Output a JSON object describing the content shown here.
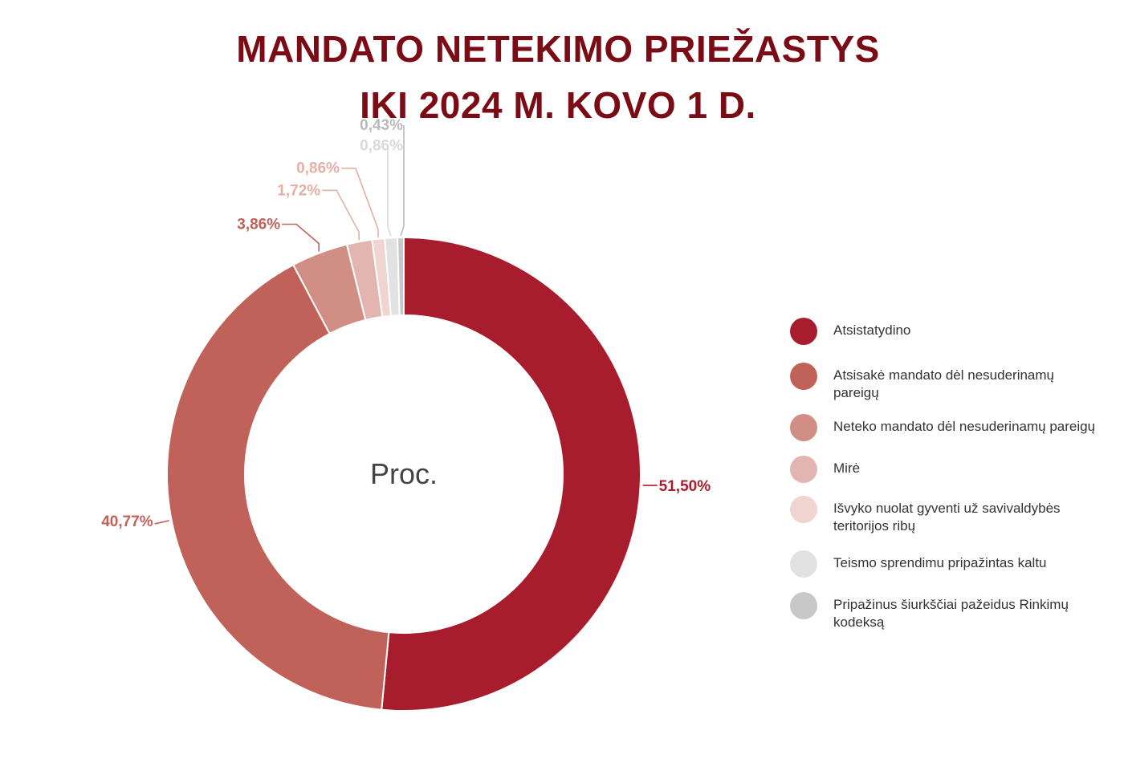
{
  "title": {
    "line1": "MANDATO NETEKIMO PRIEŽASTYS",
    "line2": "IKI 2024 M. KOVO 1 D."
  },
  "colors": {
    "title": "#7b0c16"
  },
  "chart_data": {
    "type": "pie",
    "variant": "donut",
    "center_label": "Proc.",
    "unit": "%",
    "legend_position": "right",
    "slices": [
      {
        "label": "Atsistatydino",
        "value": 51.5,
        "value_label": "51,50%",
        "color": "#a81d2e"
      },
      {
        "label": "Atsisakė mandato dėl nesuderinamų pareigų",
        "value": 40.77,
        "value_label": "40,77%",
        "color": "#c0625a"
      },
      {
        "label": "Neteko mandato dėl nesuderinamų pareigų",
        "value": 3.86,
        "value_label": "3,86%",
        "color": "#d08e84"
      },
      {
        "label": "Mirė",
        "value": 1.72,
        "value_label": "1,72%",
        "color": "#e3b5b0"
      },
      {
        "label": "Išvyko nuolat gyventi už savivaldybės teritorijos ribų",
        "value": 0.86,
        "value_label": "0,86%",
        "color": "#efd4cf"
      },
      {
        "label": "Teismo sprendimu pripažintas kaltu",
        "value": 0.86,
        "value_label": "0,86%",
        "color": "#e2e2e2"
      },
      {
        "label": "Pripažinus šiurkščiai pažeidus Rinkimų kodeksą",
        "value": 0.43,
        "value_label": "0,43%",
        "color": "#c8c8c8"
      }
    ]
  }
}
